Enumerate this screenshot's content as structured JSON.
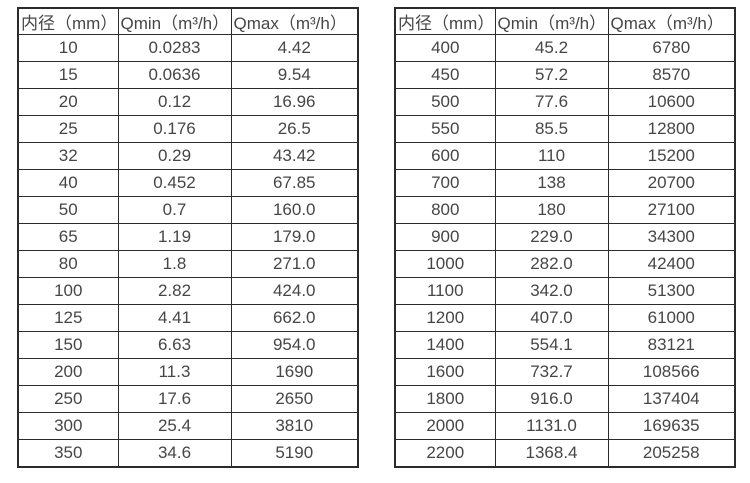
{
  "page": {
    "background_color": "#ffffff",
    "text_color": "#464646",
    "border_color": "#2b2b2b"
  },
  "tables": [
    {
      "id": "flow-table-dn10-350",
      "headers": [
        "内径（mm）",
        "Qmin（m³/h）",
        "Qmax（m³/h）"
      ],
      "rows": [
        [
          "10",
          "0.0283",
          "4.42"
        ],
        [
          "15",
          "0.0636",
          "9.54"
        ],
        [
          "20",
          "0.12",
          "16.96"
        ],
        [
          "25",
          "0.176",
          "26.5"
        ],
        [
          "32",
          "0.29",
          "43.42"
        ],
        [
          "40",
          "0.452",
          "67.85"
        ],
        [
          "50",
          "0.7",
          "160.0"
        ],
        [
          "65",
          "1.19",
          "179.0"
        ],
        [
          "80",
          "1.8",
          "271.0"
        ],
        [
          "100",
          "2.82",
          "424.0"
        ],
        [
          "125",
          "4.41",
          "662.0"
        ],
        [
          "150",
          "6.63",
          "954.0"
        ],
        [
          "200",
          "11.3",
          "1690"
        ],
        [
          "250",
          "17.6",
          "2650"
        ],
        [
          "300",
          "25.4",
          "3810"
        ],
        [
          "350",
          "34.6",
          "5190"
        ]
      ]
    },
    {
      "id": "flow-table-dn400-2200",
      "headers": [
        "内径（mm）",
        "Qmin（m³/h）",
        "Qmax（m³/h）"
      ],
      "rows": [
        [
          "400",
          "45.2",
          "6780"
        ],
        [
          "450",
          "57.2",
          "8570"
        ],
        [
          "500",
          "77.6",
          "10600"
        ],
        [
          "550",
          "85.5",
          "12800"
        ],
        [
          "600",
          "110",
          "15200"
        ],
        [
          "700",
          "138",
          "20700"
        ],
        [
          "800",
          "180",
          "27100"
        ],
        [
          "900",
          "229.0",
          "34300"
        ],
        [
          "1000",
          "282.0",
          "42400"
        ],
        [
          "1100",
          "342.0",
          "51300"
        ],
        [
          "1200",
          "407.0",
          "61000"
        ],
        [
          "1400",
          "554.1",
          "83121"
        ],
        [
          "1600",
          "732.7",
          "108566"
        ],
        [
          "1800",
          "916.0",
          "137404"
        ],
        [
          "2000",
          "1131.0",
          "169635"
        ],
        [
          "2200",
          "1368.4",
          "205258"
        ]
      ]
    }
  ]
}
